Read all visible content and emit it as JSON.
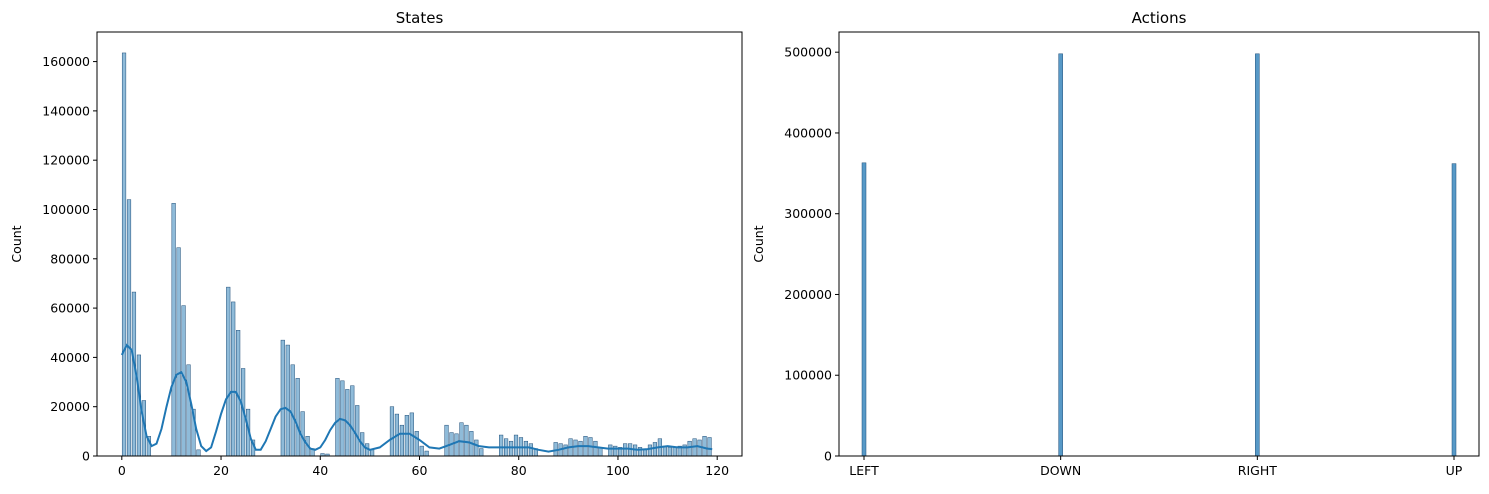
{
  "chart_data": [
    {
      "type": "bar",
      "subtype": "histogram-with-kde",
      "title": "States",
      "xlabel": "",
      "ylabel": "Count",
      "xlim": [
        -5,
        125
      ],
      "ylim": [
        0,
        172000
      ],
      "xticks": [
        0,
        20,
        40,
        60,
        80,
        100,
        120
      ],
      "yticks": [
        0,
        20000,
        40000,
        60000,
        80000,
        100000,
        120000,
        140000,
        160000
      ],
      "grid": false,
      "colors": {
        "bar_fill": "#1f77b4",
        "bar_opacity": 0.5,
        "kde_line": "#1f77b4"
      },
      "bars": [
        {
          "x": 0,
          "value": 163500
        },
        {
          "x": 1,
          "value": 104000
        },
        {
          "x": 2,
          "value": 66500
        },
        {
          "x": 3,
          "value": 41000
        },
        {
          "x": 4,
          "value": 22500
        },
        {
          "x": 5,
          "value": 8000
        },
        {
          "x": 10,
          "value": 102500
        },
        {
          "x": 11,
          "value": 84500
        },
        {
          "x": 12,
          "value": 61000
        },
        {
          "x": 13,
          "value": 37000
        },
        {
          "x": 14,
          "value": 19000
        },
        {
          "x": 15,
          "value": 2500
        },
        {
          "x": 21,
          "value": 68500
        },
        {
          "x": 22,
          "value": 62500
        },
        {
          "x": 23,
          "value": 51000
        },
        {
          "x": 24,
          "value": 35500
        },
        {
          "x": 25,
          "value": 19000
        },
        {
          "x": 26,
          "value": 6500
        },
        {
          "x": 32,
          "value": 47000
        },
        {
          "x": 33,
          "value": 45000
        },
        {
          "x": 34,
          "value": 37000
        },
        {
          "x": 35,
          "value": 31500
        },
        {
          "x": 36,
          "value": 18000
        },
        {
          "x": 37,
          "value": 8000
        },
        {
          "x": 38,
          "value": 3000
        },
        {
          "x": 40,
          "value": 1000
        },
        {
          "x": 41,
          "value": 800
        },
        {
          "x": 43,
          "value": 31500
        },
        {
          "x": 44,
          "value": 30500
        },
        {
          "x": 45,
          "value": 27000
        },
        {
          "x": 46,
          "value": 28500
        },
        {
          "x": 47,
          "value": 20500
        },
        {
          "x": 48,
          "value": 9500
        },
        {
          "x": 49,
          "value": 5000
        },
        {
          "x": 50,
          "value": 2500
        },
        {
          "x": 54,
          "value": 20000
        },
        {
          "x": 55,
          "value": 17000
        },
        {
          "x": 56,
          "value": 12500
        },
        {
          "x": 57,
          "value": 16500
        },
        {
          "x": 58,
          "value": 17500
        },
        {
          "x": 59,
          "value": 10000
        },
        {
          "x": 60,
          "value": 4000
        },
        {
          "x": 61,
          "value": 2000
        },
        {
          "x": 65,
          "value": 12500
        },
        {
          "x": 66,
          "value": 9500
        },
        {
          "x": 67,
          "value": 9000
        },
        {
          "x": 68,
          "value": 13500
        },
        {
          "x": 69,
          "value": 12500
        },
        {
          "x": 70,
          "value": 10000
        },
        {
          "x": 71,
          "value": 6500
        },
        {
          "x": 72,
          "value": 3000
        },
        {
          "x": 76,
          "value": 8500
        },
        {
          "x": 77,
          "value": 7000
        },
        {
          "x": 78,
          "value": 6000
        },
        {
          "x": 79,
          "value": 8500
        },
        {
          "x": 80,
          "value": 7500
        },
        {
          "x": 81,
          "value": 6000
        },
        {
          "x": 82,
          "value": 5000
        },
        {
          "x": 83,
          "value": 3000
        },
        {
          "x": 87,
          "value": 5500
        },
        {
          "x": 88,
          "value": 5000
        },
        {
          "x": 89,
          "value": 4500
        },
        {
          "x": 90,
          "value": 7000
        },
        {
          "x": 91,
          "value": 6500
        },
        {
          "x": 92,
          "value": 6000
        },
        {
          "x": 93,
          "value": 8000
        },
        {
          "x": 94,
          "value": 7500
        },
        {
          "x": 95,
          "value": 6000
        },
        {
          "x": 96,
          "value": 3500
        },
        {
          "x": 98,
          "value": 4500
        },
        {
          "x": 99,
          "value": 4000
        },
        {
          "x": 100,
          "value": 3500
        },
        {
          "x": 101,
          "value": 5000
        },
        {
          "x": 102,
          "value": 5000
        },
        {
          "x": 103,
          "value": 4500
        },
        {
          "x": 104,
          "value": 3500
        },
        {
          "x": 105,
          "value": 2500
        },
        {
          "x": 106,
          "value": 4500
        },
        {
          "x": 107,
          "value": 5500
        },
        {
          "x": 108,
          "value": 7000
        },
        {
          "x": 109,
          "value": 4000
        },
        {
          "x": 110,
          "value": 3500
        },
        {
          "x": 111,
          "value": 3500
        },
        {
          "x": 112,
          "value": 4000
        },
        {
          "x": 113,
          "value": 4500
        },
        {
          "x": 114,
          "value": 6000
        },
        {
          "x": 115,
          "value": 7000
        },
        {
          "x": 116,
          "value": 6500
        },
        {
          "x": 117,
          "value": 8000
        },
        {
          "x": 118,
          "value": 7500
        }
      ],
      "kde": {
        "x": [
          0,
          1,
          2,
          3,
          4,
          5,
          6,
          7,
          8,
          9,
          10,
          11,
          12,
          13,
          14,
          15,
          16,
          17,
          18,
          19,
          20,
          21,
          22,
          23,
          24,
          25,
          26,
          27,
          28,
          29,
          30,
          31,
          32,
          33,
          34,
          35,
          36,
          37,
          38,
          39,
          40,
          41,
          42,
          43,
          44,
          45,
          46,
          47,
          48,
          49,
          50,
          52,
          54,
          56,
          58,
          60,
          62,
          64,
          66,
          68,
          70,
          72,
          74,
          76,
          78,
          80,
          82,
          84,
          86,
          88,
          90,
          92,
          94,
          96,
          98,
          100,
          102,
          104,
          106,
          108,
          110,
          112,
          114,
          116,
          118,
          119
        ],
        "y": [
          41000,
          45000,
          43000,
          32000,
          18000,
          8000,
          4000,
          5000,
          11000,
          20000,
          28000,
          33000,
          34000,
          30000,
          21000,
          11000,
          4000,
          2000,
          3500,
          10000,
          17000,
          23000,
          26000,
          26000,
          22000,
          15000,
          7000,
          2500,
          2500,
          6000,
          11000,
          16000,
          19000,
          19500,
          18000,
          14000,
          9000,
          5500,
          3000,
          2500,
          3500,
          6500,
          10500,
          13500,
          15000,
          14500,
          12500,
          9500,
          6000,
          3500,
          2500,
          3500,
          6500,
          9000,
          9000,
          6500,
          3500,
          3000,
          4500,
          6000,
          5500,
          4000,
          3500,
          3500,
          3500,
          3500,
          3500,
          2500,
          1800,
          2500,
          3500,
          4000,
          4000,
          3500,
          3000,
          3000,
          3000,
          2500,
          2800,
          3500,
          4000,
          3500,
          3500,
          4000,
          3000,
          2800
        ]
      }
    },
    {
      "type": "bar",
      "subtype": "histogram",
      "title": "Actions",
      "xlabel": "",
      "ylabel": "Count",
      "categories": [
        "LEFT",
        "DOWN",
        "RIGHT",
        "UP"
      ],
      "values": [
        363000,
        498000,
        498000,
        362000
      ],
      "ylim": [
        0,
        525000
      ],
      "yticks": [
        0,
        100000,
        200000,
        300000,
        400000,
        500000
      ],
      "grid": false,
      "colors": {
        "bar_fill": "#1f77b4",
        "bar_opacity": 0.75
      }
    }
  ]
}
